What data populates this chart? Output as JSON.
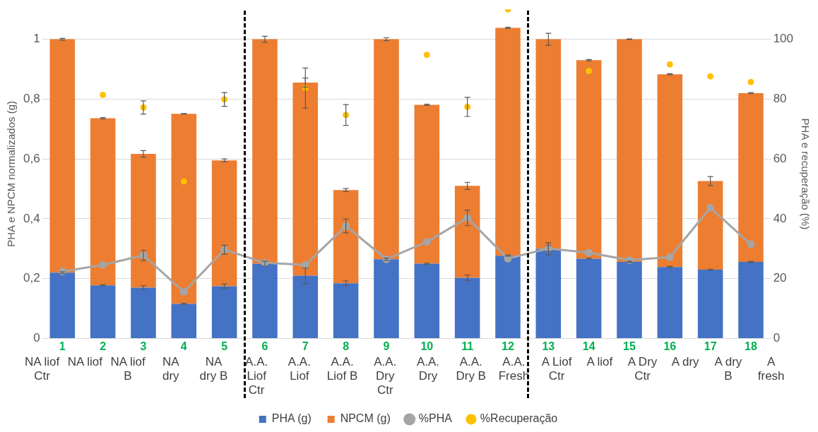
{
  "chart_data": {
    "type": "bar",
    "stacked": true,
    "ylabel": "PHA e NPCM normalizados (g)",
    "y2label": "PHA e recuperação (%)",
    "categories": [
      "1\nNA liof\nCtr",
      "2\nNA liof",
      "3\nNA liof\nB",
      "4\nNA\ndry",
      "5\nNA\ndry B",
      "6\nA.A.\nLiof\nCtr",
      "7\nA.A.\nLiof",
      "8\nA.A.\nLiof B",
      "9\nA.A.\nDry\nCtr",
      "10\nA.A.\nDry",
      "11\nA.A.\nDry B",
      "12\nA.A.\nFresh",
      "13\nA Liof\nCtr",
      "14\nA liof",
      "15\nA Dry\nCtr",
      "16\nA dry",
      "17\nA dry\nB",
      "18\nA\nfresh"
    ],
    "series": [
      {
        "name": "PHA (g)",
        "color": "#4472c4",
        "values": [
          0.22,
          0.178,
          0.17,
          0.116,
          0.175,
          0.25,
          0.21,
          0.185,
          0.265,
          0.25,
          0.203,
          0.277,
          0.3,
          0.267,
          0.256,
          0.239,
          0.23,
          0.256
        ],
        "errors": [
          0.003,
          0.002,
          0.007,
          0.002,
          0.007,
          0.008,
          0.026,
          0.008,
          0.004,
          0.002,
          0.009,
          0.002,
          0.02,
          0.002,
          0.002,
          0.002,
          0.002,
          0.002
        ]
      },
      {
        "name": "NPCM (g)",
        "color": "#ed7d31",
        "values": [
          0.78,
          0.558,
          0.447,
          0.635,
          0.42,
          0.75,
          0.645,
          0.311,
          0.735,
          0.531,
          0.307,
          0.761,
          0.7,
          0.663,
          0.744,
          0.644,
          0.296,
          0.564
        ],
        "errors": [
          0.003,
          0.002,
          0.011,
          0.001,
          0.005,
          0.01,
          0.015,
          0.005,
          0.005,
          0.002,
          0.012,
          0.002,
          0.02,
          0.002,
          0.001,
          0.002,
          0.015,
          0.002
        ]
      },
      {
        "name": "%PHA",
        "type": "line",
        "axis": "y2",
        "color": "#a5a5a5",
        "marker": "circle",
        "values": [
          22.4,
          24.6,
          27.8,
          15.6,
          29.7,
          25.3,
          24.6,
          37.6,
          26.5,
          32.3,
          40.3,
          26.7,
          30.1,
          28.7,
          26.2,
          27.2,
          43.7,
          31.5
        ],
        "errors": [
          null,
          null,
          1.7,
          null,
          1.5,
          null,
          null,
          2.3,
          null,
          null,
          2.6,
          null,
          1,
          null,
          null,
          null,
          null,
          null
        ]
      },
      {
        "name": "%Recuperação",
        "type": "scatter",
        "axis": "y2",
        "color": "#ffc000",
        "marker": "circle",
        "values": [
          null,
          81.4,
          77.2,
          52.5,
          79.9,
          null,
          83.7,
          74.7,
          null,
          94.8,
          77.4,
          110,
          null,
          89.4,
          null,
          91.6,
          87.6,
          85.7
        ],
        "errors": [
          null,
          null,
          2.2,
          null,
          2.3,
          null,
          6.7,
          3.5,
          null,
          null,
          3.2,
          null,
          null,
          null,
          null,
          null,
          null,
          null
        ]
      }
    ],
    "ylim": [
      0,
      1.1
    ],
    "yticks": [
      0,
      {
        "value": 0.2,
        "label": "0,2"
      },
      {
        "value": 0.4,
        "label": "0,4"
      },
      {
        "value": 0.6,
        "label": "0,6"
      },
      {
        "value": 0.8,
        "label": "0,8"
      },
      1
    ],
    "y2lim": [
      0,
      110
    ],
    "y2ticks": [
      0,
      20,
      40,
      60,
      80,
      100
    ],
    "grid": "y",
    "legend": "bottom"
  }
}
